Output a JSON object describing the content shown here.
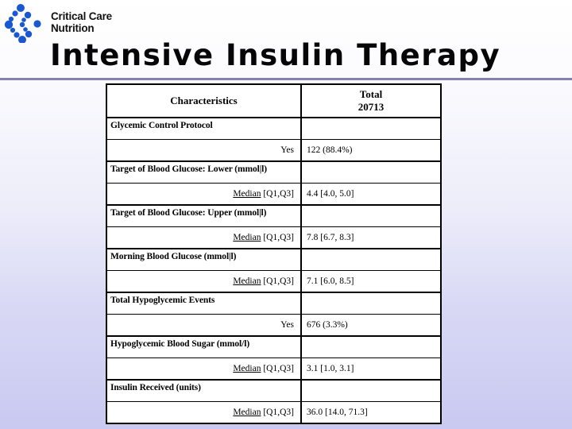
{
  "slide": {
    "title": "Intensive Insulin Therapy",
    "accent_rule_color": "#8282b2",
    "background_top_color": "#ffffff",
    "background_bottom_color": "#c9c9f1"
  },
  "logo": {
    "line1": "Critical Care",
    "line2": "Nutrition",
    "icon_color": "#1a58d2"
  },
  "table": {
    "header": {
      "col1": "Characteristics",
      "col2_line1": "Total",
      "col2_line2": "20713"
    },
    "rows": [
      {
        "type": "section",
        "label": "Glycemic Control Protocol",
        "value": ""
      },
      {
        "type": "data",
        "label": "Yes",
        "value": "122 (88.4%)"
      },
      {
        "type": "section",
        "label": "Target of Blood Glucose: Lower (mmol|l)",
        "value": ""
      },
      {
        "type": "data",
        "label": "Median [Q1,Q3]",
        "underline_prefix": "Median",
        "value": "4.4 [4.0, 5.0]"
      },
      {
        "type": "section",
        "label": "Target of Blood Glucose: Upper (mmol|l)",
        "value": ""
      },
      {
        "type": "data",
        "label": "Median [Q1,Q3]",
        "underline_prefix": "Median",
        "value": "7.8 [6.7, 8.3]"
      },
      {
        "type": "section",
        "label": "Morning Blood Glucose (mmol|l)",
        "value": ""
      },
      {
        "type": "data",
        "label": "Median [Q1,Q3]",
        "underline_prefix": "Median",
        "value": "7.1 [6.0, 8.5]"
      },
      {
        "type": "section",
        "label": "Total Hypoglycemic Events",
        "value": ""
      },
      {
        "type": "data",
        "label": "Yes",
        "value": "676 (3.3%)"
      },
      {
        "type": "section",
        "label": "Hypoglycemic Blood Sugar (mmol/l)",
        "value": ""
      },
      {
        "type": "data",
        "label": "Median [Q1,Q3]",
        "underline_prefix": "Median",
        "value": "3.1 [1.0, 3.1]"
      },
      {
        "type": "section",
        "label": "Insulin Received (units)",
        "value": ""
      },
      {
        "type": "data",
        "label": "Median [Q1,Q3]",
        "underline_prefix": "Median",
        "value": "36.0 [14.0, 71.3]"
      }
    ]
  }
}
